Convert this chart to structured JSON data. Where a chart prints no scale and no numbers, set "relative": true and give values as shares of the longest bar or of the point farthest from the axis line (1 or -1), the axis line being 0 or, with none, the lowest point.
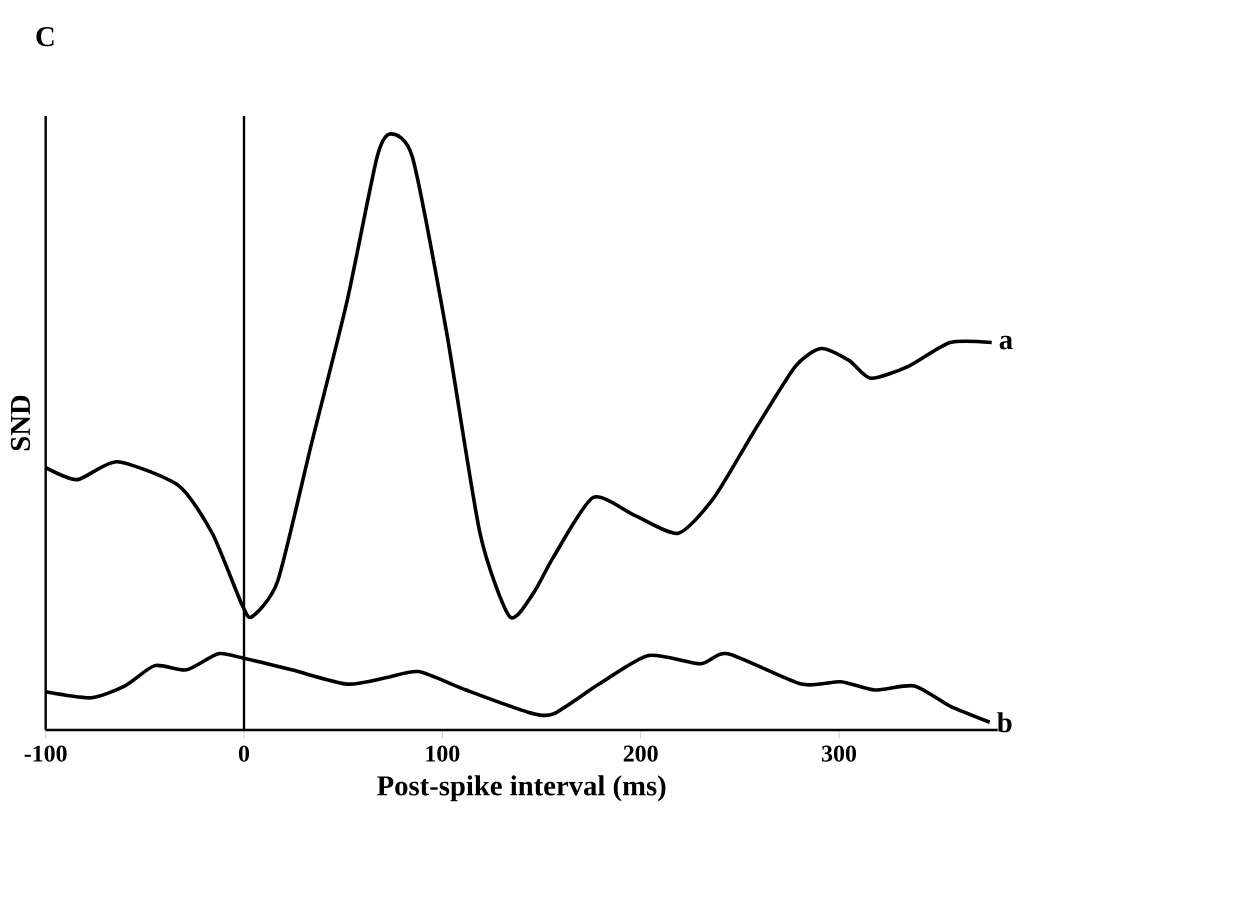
{
  "chart_data": {
    "type": "line",
    "relative": true,
    "xlabel": "Post-spike interval (ms)",
    "ylabel": "SND",
    "annotations": [
      "C"
    ],
    "tick_labels": "x",
    "xlim": [
      -100,
      380
    ],
    "xticks": [
      -100,
      0,
      100,
      200,
      300
    ],
    "ref_lines": [
      {
        "axis": "x",
        "value": 0,
        "color": "#000000"
      }
    ],
    "series": [
      {
        "name": "a",
        "color": "#000000",
        "x": [
          -100,
          -84,
          -64,
          -33,
          -16,
          -1,
          4,
          17,
          34,
          52,
          67,
          74,
          85,
          102,
          119,
          134,
          146,
          156,
          176,
          197,
          219,
          237,
          257,
          278,
          291,
          305,
          316,
          335,
          356,
          377
        ],
        "values": [
          0.44,
          0.42,
          0.45,
          0.41,
          0.33,
          0.21,
          0.19,
          0.25,
          0.48,
          0.72,
          0.96,
          1.0,
          0.96,
          0.67,
          0.33,
          0.19,
          0.23,
          0.29,
          0.39,
          0.36,
          0.33,
          0.39,
          0.5,
          0.61,
          0.64,
          0.62,
          0.59,
          0.61,
          0.65,
          0.65
        ]
      },
      {
        "name": "b",
        "color": "#000000",
        "x": [
          -100,
          -77,
          -60,
          -45,
          -29,
          -13,
          -1,
          24,
          52,
          72,
          88,
          112,
          143,
          156,
          179,
          204,
          230,
          244,
          281,
          301,
          318,
          338,
          356,
          376
        ],
        "values": [
          0.064,
          0.054,
          0.074,
          0.108,
          0.101,
          0.128,
          0.121,
          0.101,
          0.077,
          0.088,
          0.098,
          0.067,
          0.03,
          0.027,
          0.077,
          0.125,
          0.111,
          0.128,
          0.077,
          0.081,
          0.067,
          0.074,
          0.04,
          0.013
        ]
      }
    ]
  }
}
